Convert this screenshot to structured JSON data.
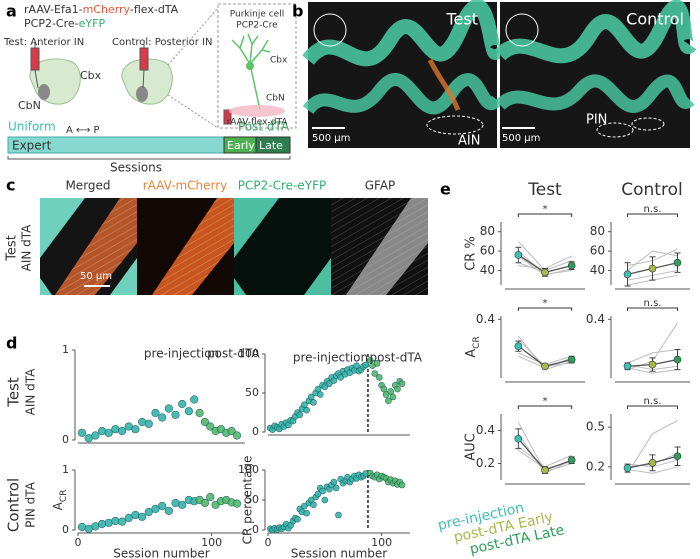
{
  "panel_a": {
    "label": "a",
    "construct": [
      "rAAV-Efa1-",
      "mCherry",
      "-flex-dTA"
    ],
    "line2": [
      "PCP2-Cre-",
      "eYFP"
    ],
    "test": "Test: Anterior IN",
    "control": "Control: Posterior IN",
    "cbx": "Cbx",
    "cbn": "CbN",
    "axis": "A ⟷ P",
    "uniform": "Uniform",
    "post_dta": "Post dTA",
    "expert": "Expert",
    "early": "Early",
    "late": "Late",
    "sessions": "Sessions",
    "inset": {
      "title": "Purkinje cell",
      "line2": "PCP2-Cre",
      "cbx": "Cbx",
      "cbn": "CbN",
      "virus": "rAAV-flex-dTA"
    }
  },
  "panel_b": {
    "label": "b",
    "test": "Test",
    "control": "Control",
    "scale_test": "500 μm",
    "scale_control": "500 μm",
    "ain": "AIN",
    "pin": "PIN"
  },
  "panel_c": {
    "label": "c",
    "row_label": [
      "Test",
      "AIN dTA"
    ],
    "columns": [
      "Merged",
      "rAAV-mCherry",
      "PCP2-Cre-eYFP",
      "GFAP"
    ],
    "scale": "50 μm"
  },
  "panel_d": {
    "label": "d",
    "rows": [
      [
        "Test",
        "AIN dTA"
      ],
      [
        "Control",
        "PIN dTA"
      ]
    ]
  },
  "panel_e": {
    "label": "e",
    "columns": [
      "Test",
      "Control"
    ]
  },
  "legend": [
    {
      "name": "pre-injection",
      "color": "#3cbfb4"
    },
    {
      "name": "post-dTA Early",
      "color": "#a8b84a"
    },
    {
      "name": "post-dTA Late",
      "color": "#2e9e5a"
    }
  ],
  "chart_data": [
    {
      "type": "scatter",
      "xlim": [
        0,
        125
      ],
      "ylim": [
        0,
        1
      ],
      "yticks": [
        0,
        1
      ],
      "annotations": [
        "pre-injection",
        "post-dTA"
      ],
      "series": [
        {
          "color": "#35b3ad",
          "x": [
            3,
            8,
            13,
            18,
            23,
            28,
            33,
            38,
            43,
            48,
            53,
            58,
            63,
            68,
            73,
            78,
            83,
            87
          ],
          "values": [
            0.08,
            0.02,
            0.05,
            0.1,
            0.08,
            0.12,
            0.1,
            0.15,
            0.12,
            0.2,
            0.18,
            0.3,
            0.25,
            0.35,
            0.28,
            0.4,
            0.32,
            0.45
          ]
        },
        {
          "color": "#52b86a",
          "x": [
            91,
            95,
            99,
            103,
            107,
            111,
            115,
            119
          ],
          "values": [
            0.3,
            0.2,
            0.15,
            0.1,
            0.12,
            0.08,
            0.1,
            0.05
          ]
        }
      ]
    },
    {
      "type": "scatter",
      "xlim": [
        0,
        125
      ],
      "ylim": [
        0,
        1
      ],
      "xticks": [
        0,
        100
      ],
      "yticks": [
        0,
        1
      ],
      "xlabel": "Session number",
      "ylabel": [
        "A",
        "CR"
      ],
      "series": [
        {
          "color": "#35b3ad",
          "x": [
            3,
            8,
            13,
            18,
            23,
            28,
            33,
            38,
            43,
            48,
            53,
            58,
            63,
            68,
            73,
            78,
            83,
            87
          ],
          "values": [
            0.05,
            0.02,
            0.06,
            0.1,
            0.12,
            0.15,
            0.14,
            0.2,
            0.25,
            0.22,
            0.3,
            0.35,
            0.4,
            0.32,
            0.45,
            0.42,
            0.5,
            0.48
          ]
        },
        {
          "color": "#52b86a",
          "x": [
            91,
            95,
            99,
            103,
            107,
            111,
            115,
            119
          ],
          "values": [
            0.5,
            0.45,
            0.55,
            0.42,
            0.48,
            0.5,
            0.46,
            0.44
          ]
        }
      ]
    },
    {
      "type": "scatter",
      "xlim": [
        0,
        125
      ],
      "ylim": [
        0,
        100
      ],
      "yticks": [
        0,
        50,
        100
      ],
      "annotations": [
        "pre-injection",
        "post-dTA"
      ],
      "divider_x": 88,
      "series": [
        {
          "color": "#35b3ad",
          "x": [
            2,
            4,
            6,
            8,
            10,
            12,
            14,
            16,
            18,
            20,
            22,
            24,
            26,
            28,
            30,
            32,
            34,
            36,
            38,
            40,
            42,
            44,
            46,
            48,
            50,
            52,
            54,
            56,
            58,
            60,
            62,
            64,
            66,
            68,
            70,
            72,
            74,
            76,
            78,
            80,
            82,
            84,
            86
          ],
          "values": [
            5,
            3,
            8,
            6,
            4,
            10,
            7,
            12,
            9,
            15,
            14,
            20,
            25,
            22,
            30,
            35,
            28,
            40,
            45,
            38,
            50,
            55,
            48,
            60,
            58,
            65,
            62,
            70,
            66,
            72,
            75,
            70,
            78,
            74,
            80,
            76,
            82,
            79,
            85,
            78,
            80,
            84,
            86
          ]
        },
        {
          "color": "#52b86a",
          "x": [
            90,
            92,
            94,
            96,
            98,
            100,
            102,
            104,
            106,
            108,
            110,
            112,
            114,
            116,
            118
          ],
          "values": [
            92,
            85,
            75,
            88,
            70,
            60,
            55,
            48,
            40,
            52,
            45,
            60,
            55,
            65,
            62
          ]
        }
      ]
    },
    {
      "type": "scatter",
      "xlim": [
        0,
        125
      ],
      "ylim": [
        0,
        100
      ],
      "xticks": [
        0,
        100
      ],
      "yticks": [
        0,
        50,
        100
      ],
      "xlabel": "Session number",
      "ylabel": "CR percentage",
      "divider_x": 88,
      "series": [
        {
          "color": "#35b3ad",
          "x": [
            2,
            4,
            6,
            8,
            10,
            12,
            14,
            16,
            18,
            20,
            22,
            24,
            26,
            28,
            30,
            32,
            34,
            36,
            38,
            40,
            42,
            44,
            46,
            48,
            50,
            52,
            54,
            56,
            58,
            60,
            62,
            64,
            66,
            68,
            70,
            72,
            74,
            76,
            78,
            80,
            82,
            84,
            86
          ],
          "values": [
            2,
            0,
            3,
            1,
            4,
            2,
            5,
            10,
            3,
            8,
            15,
            20,
            18,
            35,
            30,
            40,
            28,
            45,
            50,
            42,
            55,
            60,
            70,
            65,
            50,
            72,
            68,
            75,
            80,
            70,
            25,
            85,
            78,
            82,
            88,
            80,
            85,
            90,
            86,
            92,
            88,
            90,
            94
          ]
        },
        {
          "color": "#52b86a",
          "x": [
            90,
            92,
            94,
            96,
            98,
            100,
            102,
            104,
            106,
            108,
            110,
            112,
            114,
            116,
            118
          ],
          "values": [
            95,
            90,
            88,
            92,
            85,
            90,
            88,
            86,
            80,
            84,
            78,
            82,
            76,
            80,
            75
          ]
        }
      ]
    },
    {
      "type": "line",
      "ylabel": "CR %",
      "ylim": [
        25,
        90
      ],
      "yticks": [
        40,
        60,
        80
      ],
      "significance": "*",
      "values": [
        56,
        38,
        45
      ],
      "errors": [
        8,
        4,
        4
      ],
      "individuals": [
        [
          70,
          40,
          50
        ],
        [
          55,
          35,
          42
        ],
        [
          48,
          38,
          45
        ],
        [
          60,
          36,
          40
        ],
        [
          45,
          42,
          55
        ]
      ]
    },
    {
      "type": "line",
      "ylim": [
        25,
        90
      ],
      "yticks": [
        40,
        60,
        80
      ],
      "significance": "n.s.",
      "values": [
        36,
        42,
        48
      ],
      "errors": [
        12,
        12,
        10
      ],
      "individuals": [
        [
          25,
          30,
          35
        ],
        [
          45,
          50,
          62
        ],
        [
          40,
          60,
          55
        ],
        [
          30,
          35,
          40
        ]
      ]
    },
    {
      "type": "line",
      "ylabel": [
        "A",
        "CR"
      ],
      "ylim": [
        0.05,
        0.42
      ],
      "yticks": [
        0.4
      ],
      "significance": "*",
      "values": [
        0.24,
        0.12,
        0.16
      ],
      "errors": [
        0.03,
        0.01,
        0.02
      ],
      "individuals": [
        [
          0.3,
          0.1,
          0.15
        ],
        [
          0.2,
          0.13,
          0.18
        ],
        [
          0.28,
          0.12,
          0.14
        ],
        [
          0.18,
          0.11,
          0.17
        ]
      ]
    },
    {
      "type": "line",
      "ylim": [
        0.05,
        0.42
      ],
      "yticks": [
        0.4
      ],
      "significance": "n.s.",
      "values": [
        0.12,
        0.13,
        0.16
      ],
      "errors": [
        0.02,
        0.04,
        0.06
      ],
      "individuals": [
        [
          0.1,
          0.15,
          0.38
        ],
        [
          0.14,
          0.2,
          0.22
        ],
        [
          0.11,
          0.08,
          0.1
        ],
        [
          0.13,
          0.1,
          0.12
        ]
      ]
    },
    {
      "type": "line",
      "ylabel": "AUC",
      "ylim": [
        0.1,
        0.5
      ],
      "yticks": [
        0.2,
        0.4
      ],
      "significance": "*",
      "values": [
        0.35,
        0.16,
        0.22
      ],
      "errors": [
        0.06,
        0.02,
        0.02
      ],
      "individuals": [
        [
          0.45,
          0.15,
          0.2
        ],
        [
          0.3,
          0.18,
          0.25
        ],
        [
          0.38,
          0.14,
          0.22
        ],
        [
          0.28,
          0.17,
          0.21
        ]
      ]
    },
    {
      "type": "line",
      "ylim": [
        0.1,
        0.6
      ],
      "yticks": [
        0.2,
        0.5
      ],
      "significance": "n.s.",
      "values": [
        0.19,
        0.23,
        0.28
      ],
      "errors": [
        0.03,
        0.06,
        0.07
      ],
      "individuals": [
        [
          0.15,
          0.45,
          0.55
        ],
        [
          0.2,
          0.22,
          0.3
        ],
        [
          0.18,
          0.15,
          0.2
        ],
        [
          0.22,
          0.2,
          0.25
        ]
      ]
    }
  ]
}
